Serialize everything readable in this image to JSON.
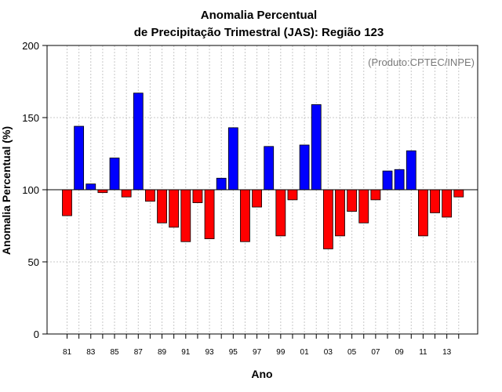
{
  "chart_data": {
    "type": "bar",
    "title_line1": "Anomalia Percentual",
    "title_line2": "de Precipitação Trimestral (JAS): Região 123",
    "credit": "(Produto:CPTEC/INPE)",
    "xlabel": "Ano",
    "ylabel": "Anomalia Percentual (%)",
    "ylim": [
      0,
      200
    ],
    "yticks": [
      0,
      50,
      100,
      150,
      200
    ],
    "baseline": 100,
    "grid": true,
    "colors": {
      "above": "#0000ff",
      "below": "#ff0000",
      "edge": "#000000",
      "grid": "#c8c8c8"
    },
    "categories": [
      "81",
      "82",
      "83",
      "84",
      "85",
      "86",
      "87",
      "88",
      "89",
      "90",
      "91",
      "92",
      "93",
      "94",
      "95",
      "96",
      "97",
      "98",
      "99",
      "00",
      "01",
      "02",
      "03",
      "04",
      "05",
      "06",
      "07",
      "08",
      "09",
      "10",
      "11",
      "12",
      "13",
      "14"
    ],
    "xtick_labels": [
      "81",
      "83",
      "85",
      "87",
      "89",
      "91",
      "93",
      "95",
      "97",
      "99",
      "01",
      "03",
      "05",
      "07",
      "09",
      "11",
      "13"
    ],
    "values": [
      82,
      144,
      104,
      98,
      122,
      95,
      167,
      92,
      77,
      74,
      64,
      91,
      66,
      108,
      143,
      64,
      88,
      130,
      68,
      93,
      131,
      159,
      59,
      68,
      85,
      77,
      93,
      113,
      114,
      127,
      68,
      84,
      81,
      95
    ]
  }
}
